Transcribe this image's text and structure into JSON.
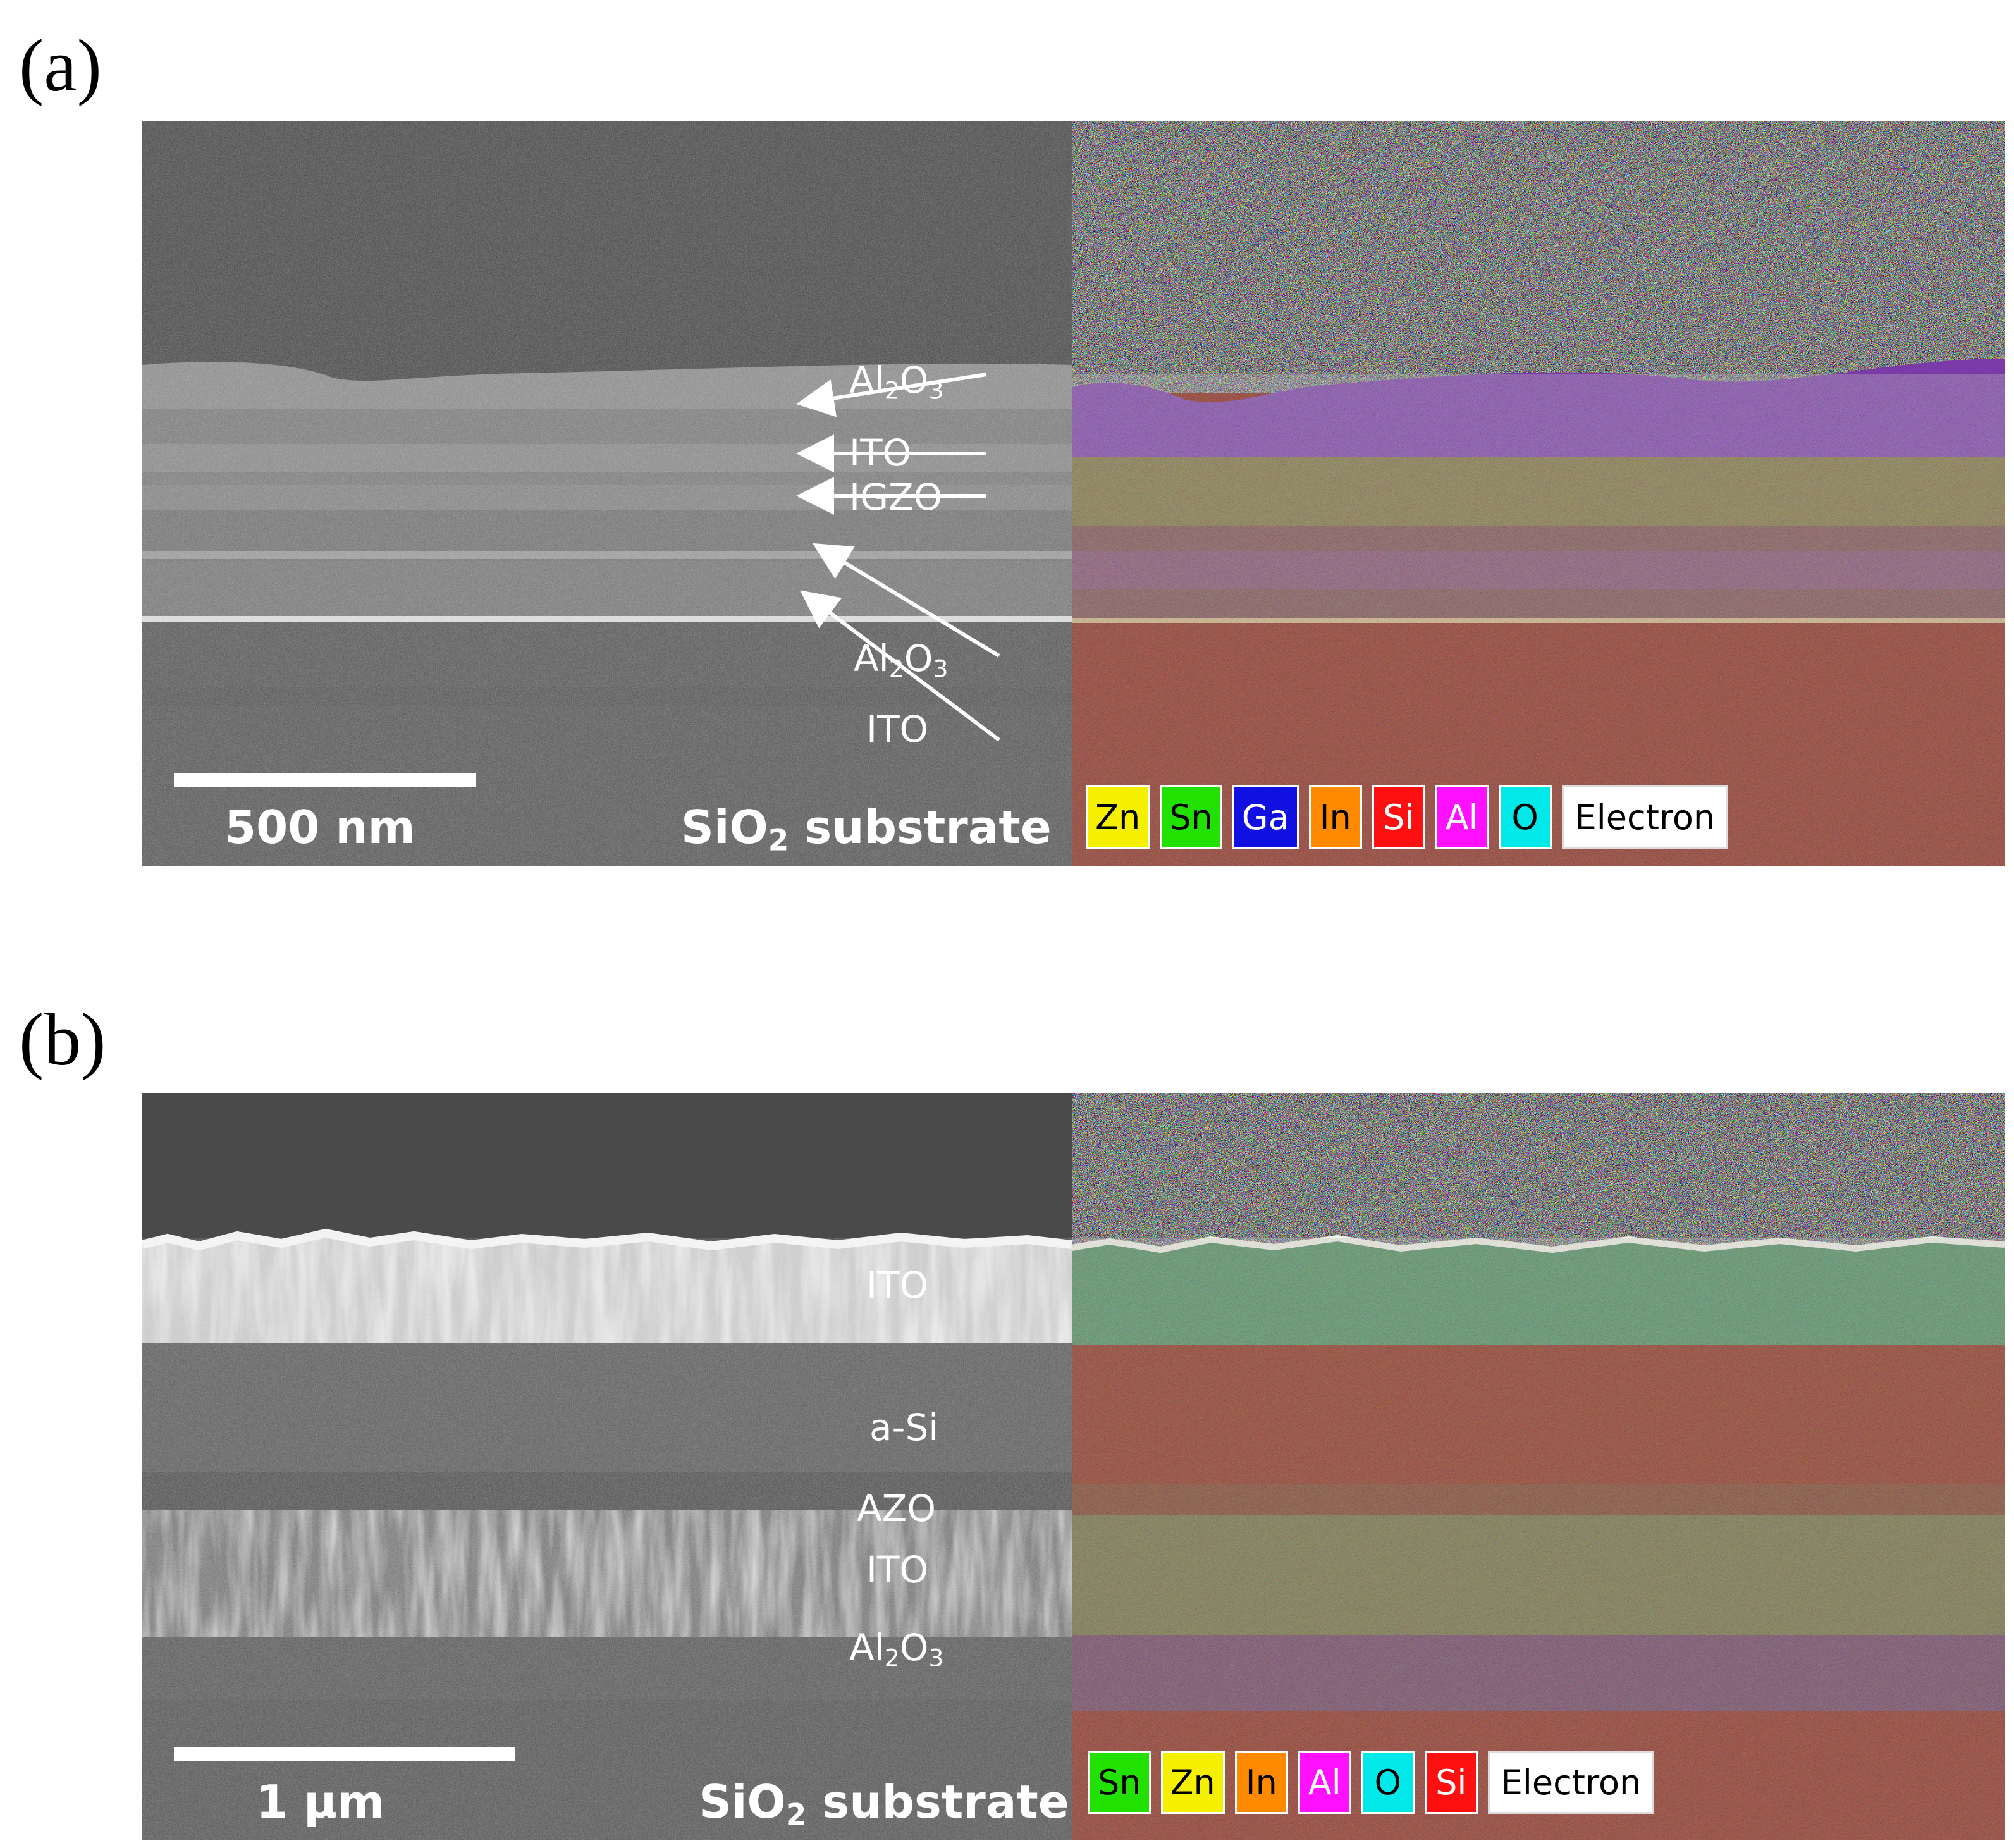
{
  "panel_a": {
    "letter": "(a)",
    "layers": [
      {
        "formula_main": "Al",
        "sub1": "2",
        "mid": "O",
        "sub2": "3"
      },
      {
        "text": "ITO"
      },
      {
        "text": "IGZO"
      },
      {
        "formula_main": "Al",
        "sub1": "2",
        "mid": "O",
        "sub2": "3"
      },
      {
        "text": "ITO"
      }
    ],
    "scale": "500 nm",
    "substrate": {
      "pre": "SiO",
      "sub": "2",
      "post": " substrate"
    },
    "legend": [
      {
        "label": "Zn",
        "bg": "#f5f000",
        "fg": "#000000"
      },
      {
        "label": "Sn",
        "bg": "#22e000",
        "fg": "#000000"
      },
      {
        "label": "Ga",
        "bg": "#1010e0",
        "fg": "#ffffff"
      },
      {
        "label": "In",
        "bg": "#ff8a00",
        "fg": "#000000"
      },
      {
        "label": "Si",
        "bg": "#ff1010",
        "fg": "#ffffff"
      },
      {
        "label": "Al",
        "bg": "#ff10ff",
        "fg": "#ffffff"
      },
      {
        "label": "O",
        "bg": "#00e8e8",
        "fg": "#000000"
      },
      {
        "label": "Electron"
      }
    ]
  },
  "panel_b": {
    "letter": "(b)",
    "layers": [
      {
        "text": "ITO"
      },
      {
        "text": "a-Si"
      },
      {
        "text": "AZO"
      },
      {
        "text": "ITO"
      },
      {
        "formula_main": "Al",
        "sub1": "2",
        "mid": "O",
        "sub2": "3"
      }
    ],
    "scale": "1 µm",
    "substrate": {
      "pre": "SiO",
      "sub": "2",
      "post": " substrate"
    },
    "legend": [
      {
        "label": "Sn",
        "bg": "#22e000",
        "fg": "#000000"
      },
      {
        "label": "Zn",
        "bg": "#f5f000",
        "fg": "#000000"
      },
      {
        "label": "In",
        "bg": "#ff8a00",
        "fg": "#000000"
      },
      {
        "label": "Al",
        "bg": "#ff10ff",
        "fg": "#ffffff"
      },
      {
        "label": "O",
        "bg": "#00e8e8",
        "fg": "#000000"
      },
      {
        "label": "Si",
        "bg": "#ff1010",
        "fg": "#ffffff"
      },
      {
        "label": "Electron"
      }
    ]
  }
}
